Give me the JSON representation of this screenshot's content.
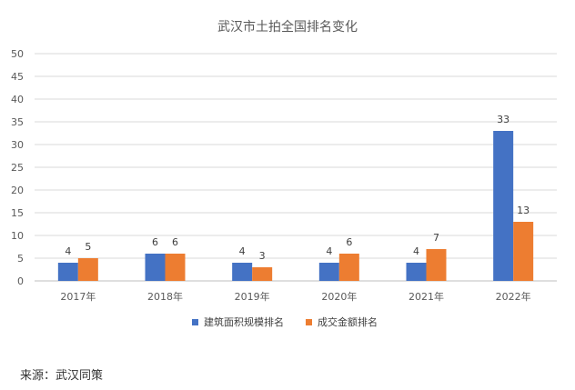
{
  "chart_data": {
    "type": "bar",
    "title": "武汉市土拍全国排名变化",
    "categories": [
      "2017年",
      "2018年",
      "2019年",
      "2020年",
      "2021年",
      "2022年"
    ],
    "series": [
      {
        "name": "建筑面积规模排名",
        "values": [
          4,
          6,
          4,
          4,
          4,
          33
        ],
        "color": "#4472C4"
      },
      {
        "name": "成交金额排名",
        "values": [
          5,
          6,
          3,
          6,
          7,
          13
        ],
        "color": "#ED7D31"
      }
    ],
    "ylim": [
      0,
      50
    ],
    "yticks": [
      0,
      5,
      10,
      15,
      20,
      25,
      30,
      35,
      40,
      45,
      50
    ],
    "grid": true,
    "legend": "bottom",
    "data_labels": true
  },
  "source": "来源：武汉同策"
}
